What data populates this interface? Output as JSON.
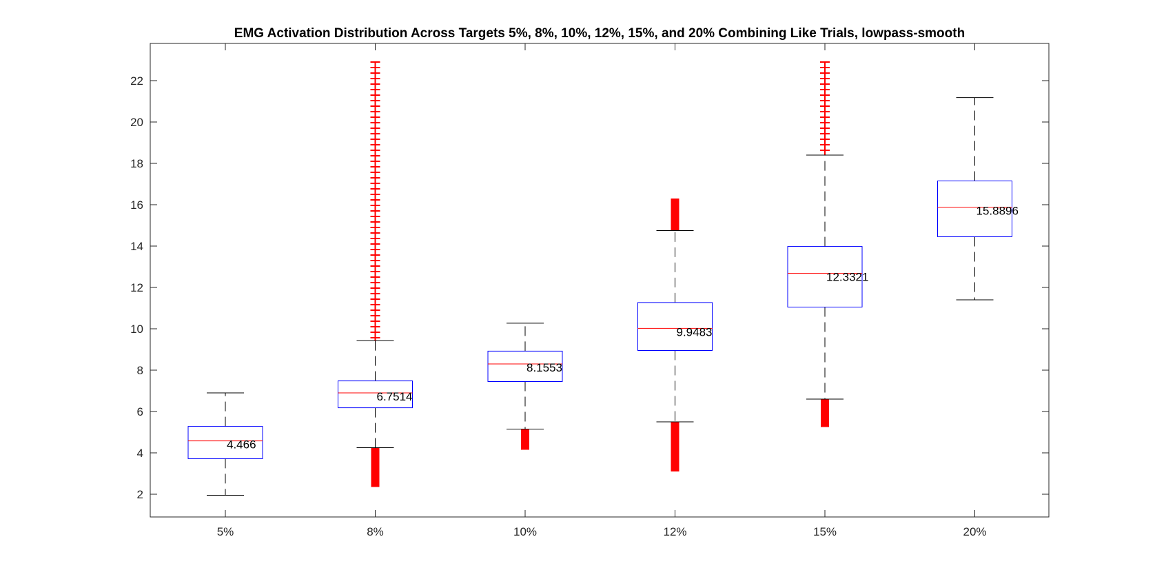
{
  "chart_data": {
    "type": "boxplot",
    "title": "EMG Activation Distribution Across Targets 5%, 8%, 10%, 12%, 15%, and 20% Combining Like Trials, lowpass-smooth",
    "xlabel": "",
    "ylabel": "",
    "categories": [
      "5%",
      "8%",
      "10%",
      "12%",
      "15%",
      "20%"
    ],
    "ylim": [
      0.9,
      23.8
    ],
    "yticks": [
      2,
      4,
      6,
      8,
      10,
      12,
      14,
      16,
      18,
      20,
      22
    ],
    "grid": false,
    "colors": {
      "box": "#0000ff",
      "median": "#ff0000",
      "whisker": "#000000",
      "outlier": "#ff0000",
      "axes": "#262626"
    },
    "boxes": [
      {
        "category": "5%",
        "whisker_low": 1.95,
        "q1": 3.72,
        "median": 4.58,
        "q3": 5.28,
        "whisker_high": 6.9,
        "label": "4.466",
        "outliers_low": null,
        "outliers_high": null
      },
      {
        "category": "8%",
        "whisker_low": 4.25,
        "q1": 6.18,
        "median": 6.9,
        "q3": 7.48,
        "whisker_high": 9.42,
        "label": "6.7514",
        "outliers_low": [
          2.35,
          4.25
        ],
        "outliers_high": [
          9.42,
          22.9
        ]
      },
      {
        "category": "10%",
        "whisker_low": 5.15,
        "q1": 7.45,
        "median": 8.3,
        "q3": 8.92,
        "whisker_high": 10.27,
        "label": "8.1553",
        "outliers_low": [
          4.15,
          5.15
        ],
        "outliers_high": null
      },
      {
        "category": "12%",
        "whisker_low": 5.5,
        "q1": 8.95,
        "median": 10.02,
        "q3": 11.27,
        "whisker_high": 14.75,
        "label": "9.9483",
        "outliers_low": [
          3.1,
          5.5
        ],
        "outliers_high": [
          14.75,
          16.3
        ]
      },
      {
        "category": "15%",
        "whisker_low": 6.6,
        "q1": 11.05,
        "median": 12.68,
        "q3": 13.98,
        "whisker_high": 18.4,
        "label": "12.3321",
        "outliers_low": [
          5.25,
          6.6
        ],
        "outliers_high": [
          18.4,
          22.9
        ]
      },
      {
        "category": "20%",
        "whisker_low": 11.4,
        "q1": 14.45,
        "median": 15.88,
        "q3": 17.15,
        "whisker_high": 21.18,
        "label": "15.8896",
        "outliers_low": null,
        "outliers_high": null
      }
    ]
  }
}
